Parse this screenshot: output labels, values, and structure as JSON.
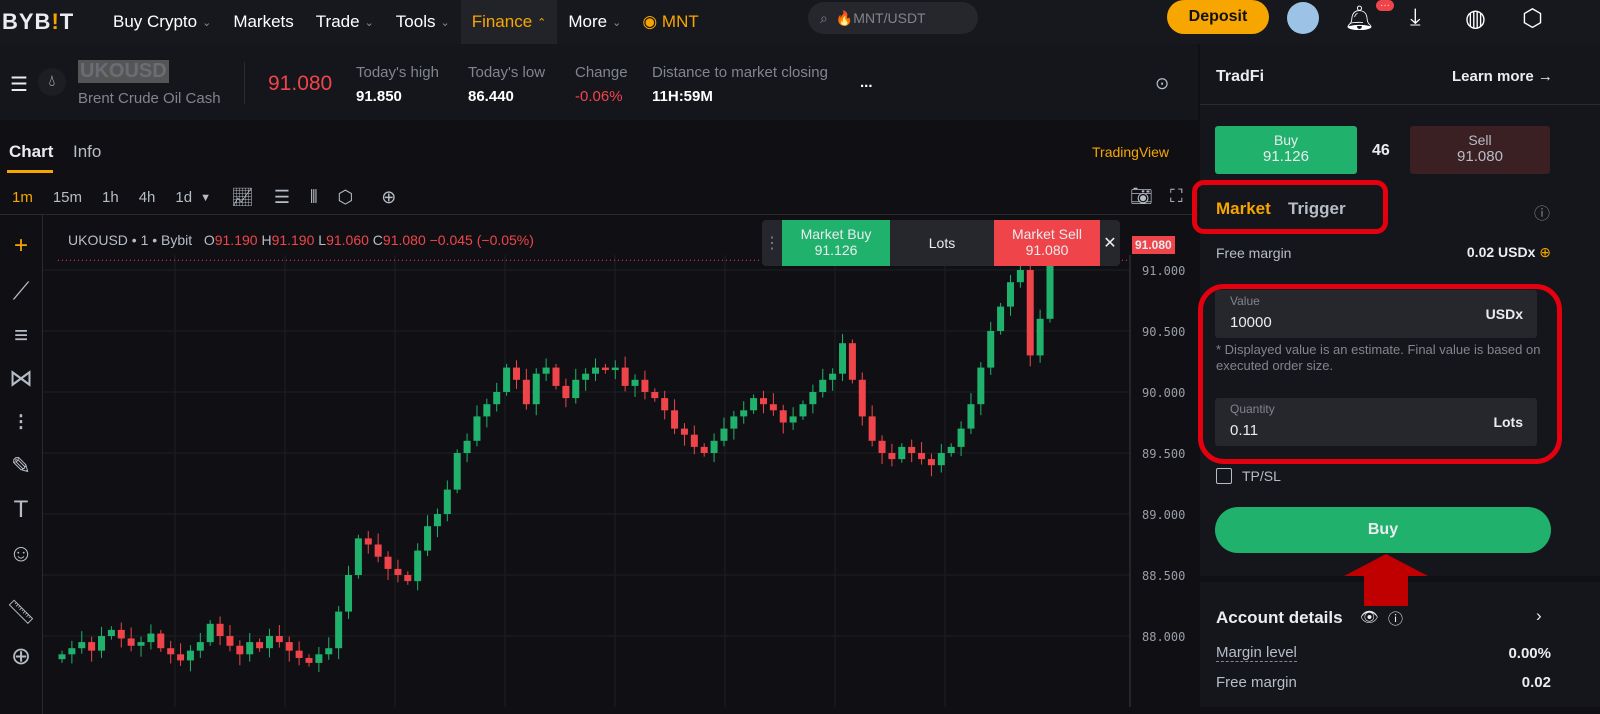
{
  "nav": {
    "logo": "BYBIT",
    "items": [
      {
        "label": "Buy Crypto",
        "chevron": true
      },
      {
        "label": "Markets"
      },
      {
        "label": "Trade",
        "chevron": true
      },
      {
        "label": "Tools",
        "chevron": true
      },
      {
        "label": "Finance",
        "chevron": true,
        "active": true
      },
      {
        "label": "More",
        "chevron": true
      }
    ],
    "mnt": "MNT",
    "search_placeholder": "🔥MNT/USDT",
    "deposit": "Deposit",
    "notif_badge": "···"
  },
  "ticker": {
    "symbol": "UKOUSD",
    "name": "Brent Crude Oil Cash",
    "price": "91.080",
    "high_label": "Today's high",
    "high": "91.850",
    "low_label": "Today's low",
    "low": "86.440",
    "change_label": "Change",
    "change": "-0.06%",
    "close_label": "Distance to market closing",
    "close": "11H:59M",
    "more": "..."
  },
  "chart": {
    "tabs": [
      "Chart",
      "Info"
    ],
    "provider": "TradingView",
    "timeframes": [
      "1m",
      "15m",
      "1h",
      "4h",
      "1d"
    ],
    "legend": {
      "title": "UKOUSD • 1 • Bybit",
      "o": "91.190",
      "h": "91.190",
      "l": "91.060",
      "c": "91.080",
      "chg": "−0.045 (−0.05%)"
    },
    "quick": {
      "buy_label": "Market Buy",
      "buy": "91.126",
      "lots": "Lots",
      "sell_label": "Market Sell",
      "sell": "91.080"
    },
    "last_price": "91.080"
  },
  "chart_data": {
    "type": "candlestick",
    "yticks": [
      "91.000",
      "90.500",
      "90.000",
      "89.500",
      "89.000",
      "88.500",
      "88.000"
    ],
    "ylim": [
      87.7,
      91.2
    ],
    "closes": [
      87.85,
      87.9,
      87.95,
      87.88,
      88.0,
      88.05,
      87.98,
      87.92,
      87.95,
      88.02,
      87.9,
      87.85,
      87.8,
      87.88,
      87.95,
      88.1,
      88.0,
      87.92,
      87.85,
      87.95,
      87.9,
      88.0,
      87.95,
      87.88,
      87.82,
      87.78,
      87.85,
      87.9,
      88.2,
      88.5,
      88.8,
      88.75,
      88.65,
      88.55,
      88.5,
      88.45,
      88.7,
      88.9,
      89.0,
      89.2,
      89.5,
      89.6,
      89.8,
      89.9,
      90.0,
      90.2,
      90.1,
      89.9,
      90.15,
      90.2,
      90.05,
      89.95,
      90.1,
      90.15,
      90.2,
      90.18,
      90.2,
      90.05,
      90.1,
      90.0,
      89.95,
      89.85,
      89.7,
      89.65,
      89.55,
      89.5,
      89.6,
      89.7,
      89.8,
      89.85,
      89.95,
      89.9,
      89.85,
      89.75,
      89.8,
      89.9,
      90.0,
      90.1,
      90.15,
      90.4,
      90.1,
      89.8,
      89.6,
      89.5,
      89.45,
      89.55,
      89.5,
      89.45,
      89.4,
      89.5,
      89.55,
      89.7,
      89.9,
      90.2,
      90.5,
      90.7,
      90.9,
      91.0,
      90.3,
      90.6,
      91.08
    ],
    "up_color": "#20b26c",
    "down_color": "#ef454a"
  },
  "panel": {
    "title": "TradFi",
    "learn_more": "Learn more →",
    "buy_label": "Buy",
    "buy": "91.126",
    "spread": "46",
    "sell_label": "Sell",
    "sell": "91.080",
    "tabs": [
      "Market",
      "Trigger"
    ],
    "free_margin_label": "Free margin",
    "free_margin": "0.02 USDx",
    "value_label": "Value",
    "value": "10000",
    "value_unit": "USDx",
    "note": "* Displayed value is an estimate. Final value is based on executed order size.",
    "qty_label": "Quantity",
    "qty": "0.11",
    "qty_unit": "Lots",
    "tpsl": "TP/SL",
    "buy_button": "Buy",
    "account": {
      "title": "Account details",
      "rows": [
        {
          "label": "Margin level",
          "value": "0.00%"
        },
        {
          "label": "Free margin",
          "value": "0.02"
        }
      ]
    }
  }
}
